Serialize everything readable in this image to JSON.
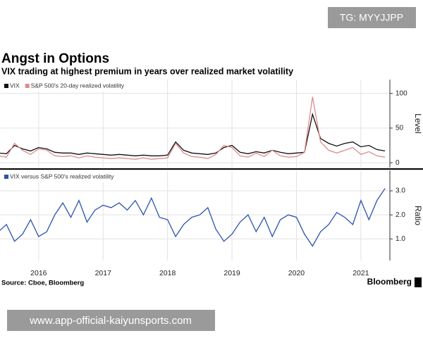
{
  "tag": "TG: MYYJJPP",
  "chart_data": [
    {
      "type": "line",
      "title": "Angst in Options",
      "subtitle": "VIX trading at highest premium in years over realized market volatility",
      "axis_label": "Level",
      "x": [
        2015.375,
        2015.5,
        2015.625,
        2015.75,
        2015.875,
        2016,
        2016.125,
        2016.25,
        2016.375,
        2016.5,
        2016.625,
        2016.75,
        2016.875,
        2017,
        2017.125,
        2017.25,
        2017.375,
        2017.5,
        2017.625,
        2017.75,
        2017.875,
        2018,
        2018.125,
        2018.25,
        2018.375,
        2018.5,
        2018.625,
        2018.75,
        2018.875,
        2019,
        2019.125,
        2019.25,
        2019.375,
        2019.5,
        2019.625,
        2019.75,
        2019.875,
        2020,
        2020.125,
        2020.25,
        2020.375,
        2020.5,
        2020.625,
        2020.75,
        2020.875,
        2021,
        2021.125,
        2021.25,
        2021.375
      ],
      "series": [
        {
          "name": "VIX",
          "color": "#111111",
          "values": [
            14,
            13,
            25,
            20,
            17,
            22,
            20,
            15,
            14,
            14,
            12,
            14,
            13,
            12,
            11,
            12,
            11,
            10,
            11,
            10,
            10,
            11,
            30,
            18,
            14,
            13,
            12,
            14,
            22,
            25,
            15,
            13,
            16,
            14,
            18,
            15,
            13,
            14,
            15,
            70,
            35,
            28,
            24,
            28,
            30,
            23,
            25,
            19,
            17
          ]
        },
        {
          "name": "S&P 500's 20-day realized volatility",
          "color": "#e08a8a",
          "values": [
            10,
            8,
            28,
            18,
            12,
            20,
            18,
            10,
            9,
            10,
            7,
            10,
            8,
            7,
            6,
            7,
            6,
            5,
            7,
            5,
            6,
            7,
            28,
            14,
            9,
            8,
            6,
            12,
            25,
            22,
            10,
            8,
            14,
            9,
            18,
            10,
            8,
            9,
            15,
            95,
            30,
            18,
            14,
            18,
            22,
            12,
            16,
            10,
            8
          ]
        }
      ],
      "xlim": [
        2015.4,
        2021.45
      ],
      "ylim": [
        -7,
        120
      ],
      "yticks": [
        0,
        50,
        100
      ],
      "grid": true
    },
    {
      "type": "line",
      "axis_label": "Ratio",
      "x": [
        2015.375,
        2015.5,
        2015.625,
        2015.75,
        2015.875,
        2016,
        2016.125,
        2016.25,
        2016.375,
        2016.5,
        2016.625,
        2016.75,
        2016.875,
        2017,
        2017.125,
        2017.25,
        2017.375,
        2017.5,
        2017.625,
        2017.75,
        2017.875,
        2018,
        2018.125,
        2018.25,
        2018.375,
        2018.5,
        2018.625,
        2018.75,
        2018.875,
        2019,
        2019.125,
        2019.25,
        2019.375,
        2019.5,
        2019.625,
        2019.75,
        2019.875,
        2020,
        2020.125,
        2020.25,
        2020.375,
        2020.5,
        2020.625,
        2020.75,
        2020.875,
        2021,
        2021.125,
        2021.25,
        2021.375
      ],
      "series": [
        {
          "name": "VIX versus S&P 500's realized volatility",
          "color": "#2a52b0",
          "values": [
            1.3,
            1.6,
            0.9,
            1.2,
            1.8,
            1.1,
            1.3,
            2.0,
            2.5,
            1.9,
            2.6,
            1.7,
            2.2,
            2.4,
            2.3,
            2.5,
            2.2,
            2.6,
            2.0,
            2.7,
            1.9,
            1.8,
            1.1,
            1.6,
            1.9,
            2.0,
            2.3,
            1.4,
            0.9,
            1.2,
            1.7,
            2.0,
            1.3,
            1.9,
            1.1,
            1.8,
            2.0,
            1.9,
            1.2,
            0.7,
            1.3,
            1.6,
            2.1,
            1.9,
            1.6,
            2.6,
            1.8,
            2.6,
            3.1
          ]
        }
      ],
      "xlim": [
        2015.4,
        2021.45
      ],
      "xticks": [
        2016,
        2017,
        2018,
        2019,
        2020,
        2021
      ],
      "ylim": [
        0.1,
        3.85
      ],
      "yticks": [
        {
          "value": 1,
          "label": "1.0"
        },
        {
          "value": 2,
          "label": "2.0"
        },
        {
          "value": 3,
          "label": "3.0"
        }
      ],
      "grid": true
    }
  ],
  "source": "Source: Cboe, Bloomberg",
  "brand": "Bloomberg",
  "watermark": "www.app-official-kaiyunsports.com"
}
